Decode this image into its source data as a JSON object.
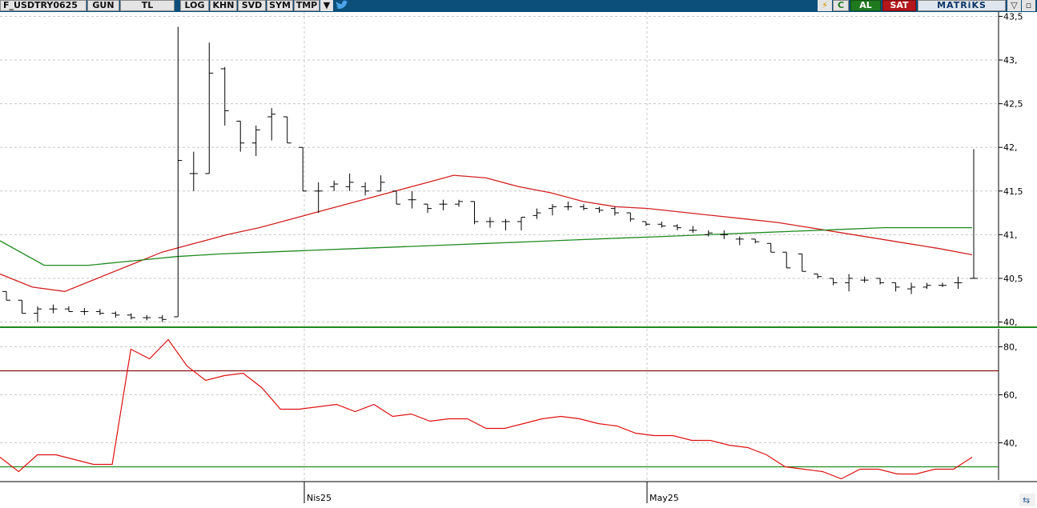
{
  "toolbar": {
    "symbol": "F_USDTRY0625",
    "period": "GUN",
    "currency": "TL",
    "buttons": [
      "LOG",
      "KHN",
      "SVD",
      "SYM",
      "TMP"
    ],
    "refresh_label": "C",
    "buy_label": "AL",
    "sell_label": "SAT",
    "brand": "MATRiKS",
    "colors": {
      "bar": "#0b4f7a",
      "buy": "#1f7a1f",
      "sell": "#b3161b"
    }
  },
  "chart_data": [
    {
      "type": "ohlc",
      "panel": "price",
      "y_ticks": [
        "43,5",
        "43,",
        "42,5",
        "42,",
        "41,5",
        "41,",
        "40,5",
        "40,"
      ],
      "ylim": [
        39.95,
        43.55
      ],
      "x_labels": [
        "Nis25",
        "May25"
      ],
      "grid": true,
      "bar_color": "#000000",
      "ohlc": [
        [
          40.35,
          40.35,
          40.25,
          40.25
        ],
        [
          40.25,
          40.25,
          40.1,
          40.1
        ],
        [
          40.1,
          40.18,
          40.0,
          40.15
        ],
        [
          40.15,
          40.2,
          40.1,
          40.15
        ],
        [
          40.15,
          40.18,
          40.12,
          40.12
        ],
        [
          40.12,
          40.16,
          40.08,
          40.12
        ],
        [
          40.12,
          40.15,
          40.08,
          40.1
        ],
        [
          40.1,
          40.12,
          40.05,
          40.08
        ],
        [
          40.08,
          40.1,
          40.03,
          40.05
        ],
        [
          40.05,
          40.08,
          40.02,
          40.05
        ],
        [
          40.05,
          40.08,
          40.0,
          40.03
        ],
        [
          40.06,
          43.38,
          40.06,
          41.85
        ],
        [
          41.7,
          41.95,
          41.5,
          41.7
        ],
        [
          41.7,
          43.2,
          41.7,
          42.85
        ],
        [
          42.9,
          42.92,
          42.25,
          42.42
        ],
        [
          42.3,
          42.3,
          41.95,
          42.05
        ],
        [
          42.05,
          42.25,
          41.9,
          42.2
        ],
        [
          42.35,
          42.45,
          42.08,
          42.38
        ],
        [
          42.35,
          42.35,
          42.05,
          42.05
        ],
        [
          42.0,
          42.0,
          41.5,
          41.5
        ],
        [
          41.5,
          41.6,
          41.25,
          41.5
        ],
        [
          41.55,
          41.62,
          41.5,
          41.58
        ],
        [
          41.55,
          41.7,
          41.5,
          41.6
        ],
        [
          41.55,
          41.6,
          41.45,
          41.5
        ],
        [
          41.5,
          41.68,
          41.5,
          41.6
        ],
        [
          41.5,
          41.5,
          41.35,
          41.35
        ],
        [
          41.4,
          41.5,
          41.3,
          41.4
        ],
        [
          41.35,
          41.35,
          41.25,
          41.3
        ],
        [
          41.35,
          41.4,
          41.28,
          41.35
        ],
        [
          41.35,
          41.4,
          41.32,
          41.38
        ],
        [
          41.38,
          41.38,
          41.12,
          41.15
        ],
        [
          41.15,
          41.2,
          41.08,
          41.15
        ],
        [
          41.15,
          41.18,
          41.05,
          41.15
        ],
        [
          41.15,
          41.2,
          41.05,
          41.2
        ],
        [
          41.22,
          41.3,
          41.18,
          41.25
        ],
        [
          41.3,
          41.35,
          41.22,
          41.32
        ],
        [
          41.32,
          41.38,
          41.28,
          41.32
        ],
        [
          41.32,
          41.35,
          41.28,
          41.3
        ],
        [
          41.3,
          41.32,
          41.25,
          41.28
        ],
        [
          41.3,
          41.32,
          41.22,
          41.25
        ],
        [
          41.25,
          41.25,
          41.15,
          41.18
        ],
        [
          41.15,
          41.15,
          41.1,
          41.12
        ],
        [
          41.12,
          41.15,
          41.08,
          41.1
        ],
        [
          41.1,
          41.12,
          41.05,
          41.08
        ],
        [
          41.05,
          41.1,
          41.02,
          41.05
        ],
        [
          41.0,
          41.05,
          40.98,
          41.02
        ],
        [
          41.0,
          41.05,
          40.95,
          41.0
        ],
        [
          40.95,
          40.98,
          40.88,
          40.95
        ],
        [
          40.95,
          40.95,
          40.9,
          40.92
        ],
        [
          40.9,
          40.9,
          40.8,
          40.8
        ],
        [
          40.8,
          40.8,
          40.62,
          40.62
        ],
        [
          40.78,
          40.78,
          40.58,
          40.58
        ],
        [
          40.55,
          40.55,
          40.5,
          40.52
        ],
        [
          40.5,
          40.5,
          40.42,
          40.45
        ],
        [
          40.45,
          40.55,
          40.35,
          40.5
        ],
        [
          40.48,
          40.52,
          40.45,
          40.48
        ],
        [
          40.5,
          40.5,
          40.43,
          40.45
        ],
        [
          40.45,
          40.45,
          40.35,
          40.4
        ],
        [
          40.38,
          40.45,
          40.32,
          40.4
        ],
        [
          40.4,
          40.45,
          40.38,
          40.42
        ],
        [
          40.42,
          40.45,
          40.4,
          40.42
        ],
        [
          40.45,
          40.52,
          40.38,
          40.45
        ],
        [
          40.5,
          41.98,
          40.5,
          40.5
        ]
      ],
      "series": [
        {
          "color": "#d32020",
          "values": [
            40.55,
            40.4,
            40.35,
            40.5,
            40.65,
            40.8,
            40.9,
            41.0,
            41.08,
            41.18,
            41.28,
            41.38,
            41.48,
            41.58,
            41.68,
            41.65,
            41.55,
            41.48,
            41.38,
            41.32,
            41.3,
            41.26,
            41.22,
            41.18,
            41.14,
            41.08,
            41.02,
            40.96,
            40.9,
            40.84,
            40.77
          ]
        },
        {
          "color": "#1f8a1f",
          "values": [
            40.93,
            40.65,
            40.65,
            40.7,
            40.75,
            40.78,
            40.8,
            40.82,
            40.84,
            40.86,
            40.88,
            40.9,
            40.92,
            40.94,
            40.96,
            40.98,
            41.0,
            41.02,
            41.04,
            41.06,
            41.08,
            41.08,
            41.08
          ]
        }
      ]
    },
    {
      "type": "line",
      "panel": "indicator",
      "y_ticks": [
        "80,",
        "60,",
        "40,"
      ],
      "ylim": [
        24.5,
        87.5
      ],
      "x_labels": [
        "Nis25",
        "May25"
      ],
      "grid": true,
      "levels": [
        70,
        30
      ],
      "level_colors": [
        "#8a1010",
        "#1f8a1f"
      ],
      "series": [
        {
          "color": "#e01010",
          "values": [
            34,
            28,
            35,
            35,
            33,
            31,
            31,
            79,
            75,
            83,
            72,
            66,
            68,
            69,
            63,
            54,
            54,
            55,
            56,
            53,
            56,
            51,
            52,
            49,
            50,
            50,
            46,
            46,
            48,
            50,
            51,
            50,
            48,
            47,
            44,
            43,
            43,
            41,
            41,
            39,
            38,
            35,
            30,
            29,
            28,
            25,
            29,
            29,
            27,
            27,
            29,
            29,
            34
          ]
        }
      ]
    }
  ]
}
